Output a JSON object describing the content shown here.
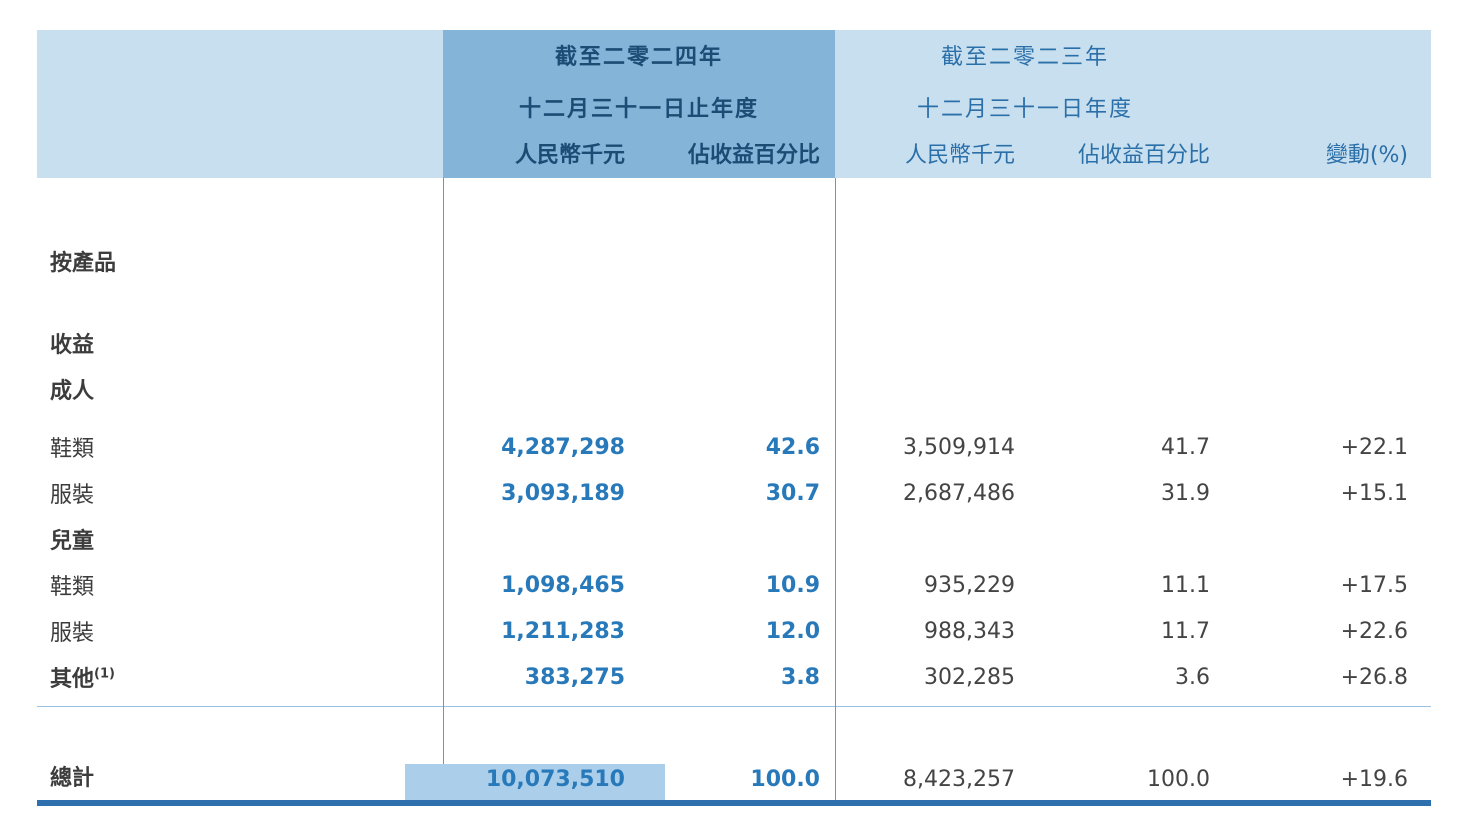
{
  "table": {
    "header": {
      "y2024": {
        "line1": "截至二零二四年",
        "line2": "十二月三十一日止年度",
        "col_amount": "人民幣千元",
        "col_percent": "佔收益百分比"
      },
      "y2023": {
        "line1": "截至二零二三年",
        "line2": "十二月三十一日年度",
        "col_amount": "人民幣千元",
        "col_percent": "佔收益百分比"
      },
      "col_change": "變動(%)"
    },
    "rows": [
      {
        "label": "按產品"
      },
      {
        "label": "收益"
      },
      {
        "label": "成人"
      },
      {
        "label": "鞋類",
        "amount_2024": "4,287,298",
        "pct_2024": "42.6",
        "amount_2023": "3,509,914",
        "pct_2023": "41.7",
        "change": "+22.1"
      },
      {
        "label": "服裝",
        "amount_2024": "3,093,189",
        "pct_2024": "30.7",
        "amount_2023": "2,687,486",
        "pct_2023": "31.9",
        "change": "+15.1"
      },
      {
        "label": "兒童"
      },
      {
        "label": "鞋類",
        "amount_2024": "1,098,465",
        "pct_2024": "10.9",
        "amount_2023": "935,229",
        "pct_2023": "11.1",
        "change": "+17.5"
      },
      {
        "label": "服裝",
        "amount_2024": "1,211,283",
        "pct_2024": "12.0",
        "amount_2023": "988,343",
        "pct_2023": "11.7",
        "change": "+22.6"
      },
      {
        "label": "其他",
        "footnote": "(1)",
        "amount_2024": "383,275",
        "pct_2024": "3.8",
        "amount_2023": "302,285",
        "pct_2023": "3.6",
        "change": "+26.8"
      }
    ],
    "total": {
      "label": "總計",
      "amount_2024": "10,073,510",
      "pct_2024": "100.0",
      "amount_2023": "8,423,257",
      "pct_2023": "100.0",
      "change": "+19.6"
    },
    "colors": {
      "header_light": "#c8dfef",
      "header_dark": "#84b5d9",
      "accent_blue": "#2879ba",
      "total_highlight": "#abcfea",
      "bottom_border": "#2d70ad"
    }
  }
}
